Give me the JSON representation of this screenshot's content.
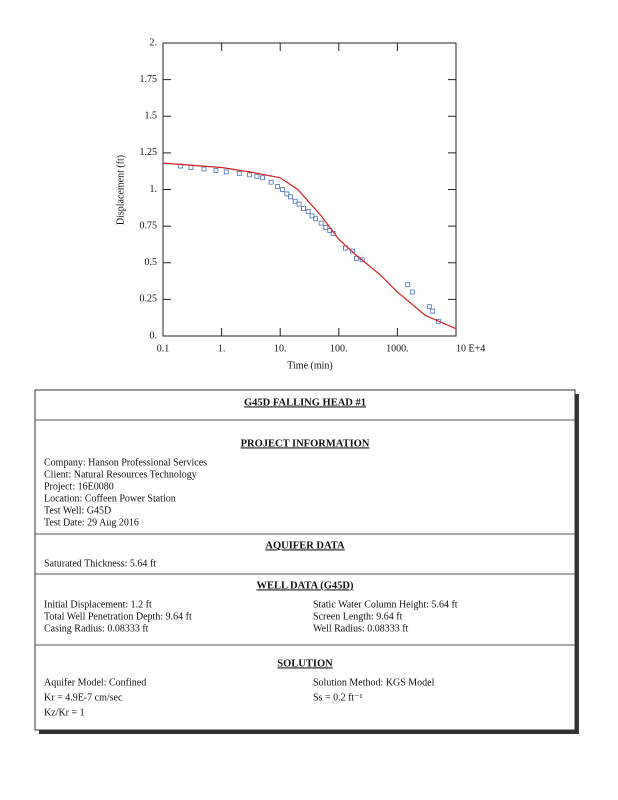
{
  "chart_data": {
    "type": "scatter",
    "xlabel": "Time (min)",
    "ylabel": "Displacement (ft)",
    "xscale": "log",
    "xlim": [
      0.1,
      10000
    ],
    "ylim": [
      0,
      2
    ],
    "xticks": [
      {
        "value": 0.1,
        "label": "0.1"
      },
      {
        "value": 1,
        "label": "1."
      },
      {
        "value": 10,
        "label": "10."
      },
      {
        "value": 100,
        "label": "100."
      },
      {
        "value": 1000,
        "label": "1000."
      },
      {
        "value": 10000,
        "label": "10 E+4"
      }
    ],
    "yticks": [
      {
        "value": 0,
        "label": "0."
      },
      0.25,
      0.5,
      0.75,
      {
        "value": 1,
        "label": "1."
      },
      1.25,
      1.5,
      1.75,
      {
        "value": 2,
        "label": "2."
      }
    ],
    "series": [
      {
        "mode": "markers",
        "color": "#4a6fb5",
        "x": [
          0.2,
          0.3,
          0.5,
          0.8,
          1.2,
          2,
          3,
          4,
          5,
          7,
          9,
          11,
          13,
          15,
          18,
          21,
          25,
          30,
          35,
          40,
          50,
          60,
          70,
          80,
          130,
          170,
          200,
          250,
          1500,
          1800,
          3500,
          4000,
          5000
        ],
        "values": [
          1.16,
          1.15,
          1.14,
          1.13,
          1.12,
          1.11,
          1.1,
          1.09,
          1.08,
          1.05,
          1.02,
          1.0,
          0.97,
          0.95,
          0.92,
          0.9,
          0.87,
          0.85,
          0.82,
          0.8,
          0.77,
          0.74,
          0.72,
          0.7,
          0.6,
          0.58,
          0.53,
          0.52,
          0.35,
          0.3,
          0.2,
          0.17,
          0.1
        ]
      },
      {
        "mode": "line",
        "color": "#d42020",
        "x": [
          0.1,
          1,
          3,
          10,
          20,
          50,
          100,
          200,
          500,
          1000,
          3000,
          10000
        ],
        "values": [
          1.18,
          1.15,
          1.12,
          1.08,
          1.0,
          0.82,
          0.66,
          0.55,
          0.42,
          0.3,
          0.14,
          0.05
        ]
      }
    ]
  },
  "report": {
    "title": "G45D FALLING HEAD #1",
    "sections": [
      {
        "heading": "PROJECT INFORMATION",
        "left": [
          "Company: Hanson Professional Services",
          "Client: Natural Resources Technology",
          "Project: 16E0080",
          "Location: Coffeen Power Station",
          "Test Well: G45D",
          "Test Date: 29 Aug 2016"
        ],
        "right": []
      },
      {
        "heading": "AQUIFER DATA",
        "left": [
          "Saturated Thickness: 5.64 ft"
        ],
        "right": []
      },
      {
        "heading": "WELL DATA (G45D)",
        "left": [
          "Initial Displacement: 1.2 ft",
          "Total Well Penetration Depth: 9.64 ft",
          "Casing Radius: 0.08333 ft"
        ],
        "right": [
          "Static Water Column Height: 5.64 ft",
          "Screen Length: 9.64 ft",
          "Well Radius: 0.08333 ft"
        ]
      },
      {
        "heading": "SOLUTION",
        "left": [
          "Aquifer Model: Confined",
          "Kr = 4.9E-7 cm/sec",
          "Kz/Kr = 1"
        ],
        "right": [
          "Solution Method: KGS Model",
          "Ss = 0.2 ft⁻¹"
        ]
      }
    ]
  }
}
